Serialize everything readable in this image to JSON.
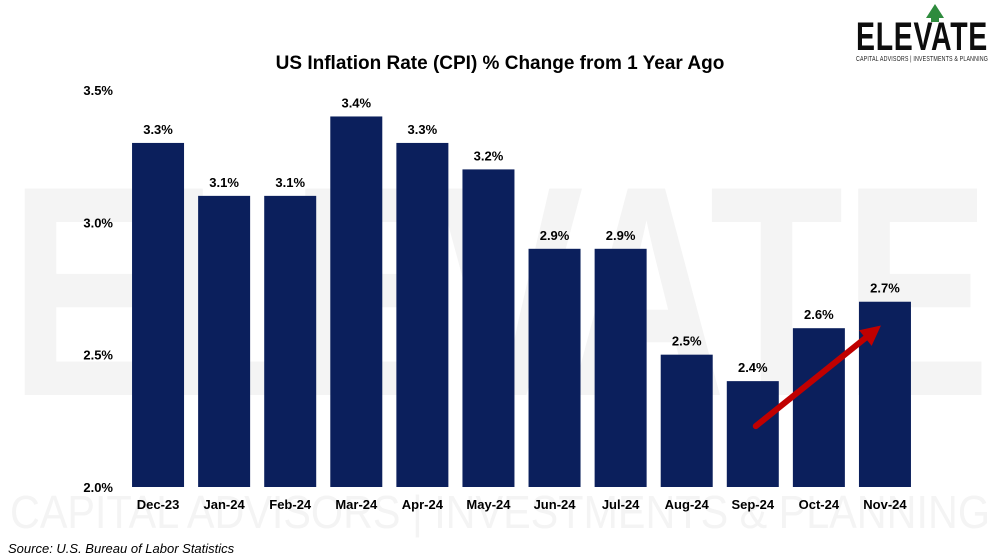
{
  "logo": {
    "name": "ELEVATE",
    "tagline": "CAPITAL ADVISORS | INVESTMENTS & PLANNING"
  },
  "watermark": {
    "main": "ELEVATE",
    "sub": "CAPITAL ADVISORS | INVESTMENTS & PLANNING"
  },
  "source": "Source: U.S. Bureau of Labor Statistics",
  "colors": {
    "bar": "#0b1f5c",
    "arrow": "#c00000",
    "logo_accent": "#2e8b3d"
  },
  "chart_data": {
    "type": "bar",
    "title": "US Inflation Rate (CPI) % Change from 1 Year Ago",
    "xlabel": "",
    "ylabel": "",
    "categories": [
      "Dec-23",
      "Jan-24",
      "Feb-24",
      "Mar-24",
      "Apr-24",
      "May-24",
      "Jun-24",
      "Jul-24",
      "Aug-24",
      "Sep-24",
      "Oct-24",
      "Nov-24"
    ],
    "values": [
      3.3,
      3.1,
      3.1,
      3.4,
      3.3,
      3.2,
      2.9,
      2.9,
      2.5,
      2.4,
      2.6,
      2.7
    ],
    "data_labels": [
      "3.3%",
      "3.1%",
      "3.1%",
      "3.4%",
      "3.3%",
      "3.2%",
      "2.9%",
      "2.9%",
      "2.5%",
      "2.4%",
      "2.6%",
      "2.7%"
    ],
    "ylim": [
      2.0,
      3.5
    ],
    "yticks": [
      2.0,
      2.5,
      3.0,
      3.5
    ],
    "ytick_labels": [
      "2.0%",
      "2.5%",
      "3.0%",
      "3.5%"
    ],
    "grid": false,
    "legend": "none",
    "annotations": [
      {
        "type": "arrow",
        "from_category": "Sep-24",
        "to_category": "Nov-24",
        "description": "upward trend arrow"
      }
    ]
  }
}
